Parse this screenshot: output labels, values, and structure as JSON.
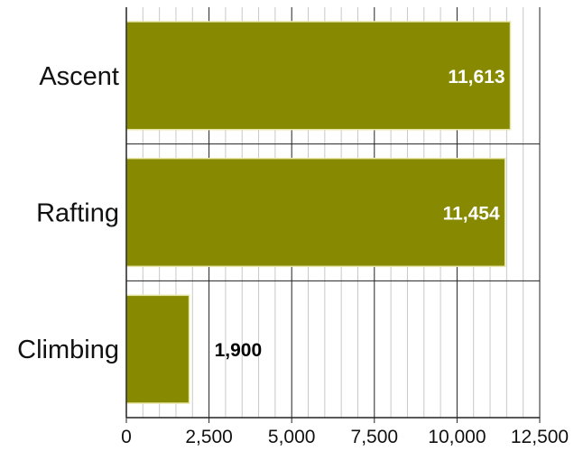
{
  "chart_data": {
    "type": "bar",
    "orientation": "horizontal",
    "categories": [
      "Ascent",
      "Rafting",
      "Climbing"
    ],
    "values": [
      11613,
      11454,
      1900
    ],
    "value_labels": [
      "11,613",
      "11,454",
      "1,900"
    ],
    "xlim": [
      0,
      12500
    ],
    "xticks": [
      0,
      2500,
      5000,
      7500,
      10000,
      12500
    ],
    "xtick_labels": [
      "0",
      "2,500",
      "5,000",
      "7,500",
      "10,000",
      "12,500"
    ],
    "minor_grid_step": 500,
    "grid": true,
    "title": "",
    "xlabel": "",
    "ylabel": "",
    "colors": {
      "bar": "#878a00",
      "bar_edge": "#e8e6a8",
      "label_inside": "#ffffff",
      "label_outside": "#000000",
      "major_grid": "#222222",
      "minor_grid": "#c8c8c8"
    }
  }
}
